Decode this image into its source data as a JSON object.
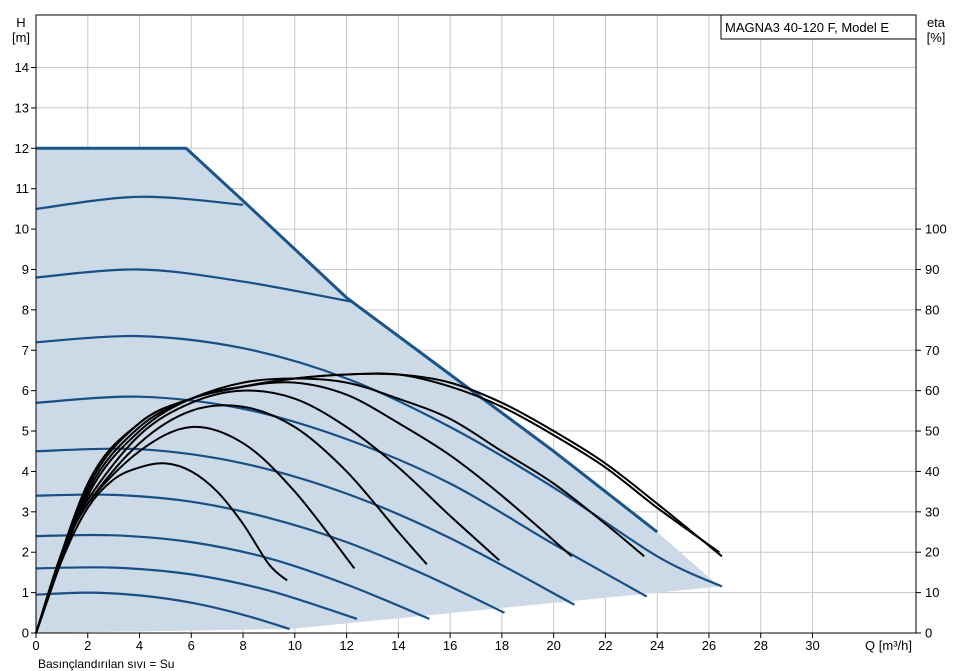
{
  "chart_data": {
    "type": "line",
    "title": "MAGNA3 40-120 F, Model E",
    "xlabel": "Q [m³/h]",
    "ylabel_left": {
      "symbol": "H",
      "unit": "[m]"
    },
    "ylabel_right": {
      "symbol": "eta",
      "unit": "[%]"
    },
    "footnote": "Basınçlandırılan sıvı = Su",
    "xlim": [
      0,
      34
    ],
    "ylim_left": [
      0,
      15.3
    ],
    "ylim_right": [
      0,
      153
    ],
    "xticks": [
      0,
      2,
      4,
      6,
      8,
      10,
      12,
      14,
      16,
      18,
      20,
      22,
      24,
      26,
      28,
      30
    ],
    "yticks_left": [
      0,
      1,
      2,
      3,
      4,
      5,
      6,
      7,
      8,
      9,
      10,
      11,
      12,
      13,
      14
    ],
    "yticks_right": [
      0,
      10,
      20,
      30,
      40,
      50,
      60,
      70,
      80,
      90,
      100
    ],
    "grid": true,
    "colors": {
      "head": "#174f86",
      "efficiency": "#000000",
      "envelope_fill": "#ccd9e6",
      "envelope_border": "#1b5489",
      "grid": "#c8c8c8"
    },
    "operating_envelope": {
      "q": [
        0,
        5.8,
        8,
        12,
        16,
        20,
        24,
        26.4,
        9.8,
        0
      ],
      "h": [
        12,
        12,
        10.7,
        8.3,
        6.4,
        4.5,
        2.5,
        1.15,
        0.1,
        0
      ]
    },
    "head_curves": [
      {
        "q": [
          0,
          2,
          4,
          6,
          8,
          9.8
        ],
        "h": [
          0.95,
          1.0,
          0.93,
          0.75,
          0.45,
          0.1
        ]
      },
      {
        "q": [
          0,
          3,
          6,
          9,
          12.4
        ],
        "h": [
          1.6,
          1.62,
          1.45,
          1.05,
          0.35
        ]
      },
      {
        "q": [
          0,
          3,
          6,
          9,
          12,
          15.2
        ],
        "h": [
          2.4,
          2.42,
          2.25,
          1.85,
          1.2,
          0.35
        ]
      },
      {
        "q": [
          0,
          3,
          6,
          9,
          12,
          15,
          18.1
        ],
        "h": [
          3.4,
          3.42,
          3.25,
          2.85,
          2.25,
          1.45,
          0.5
        ]
      },
      {
        "q": [
          0,
          4,
          8,
          12,
          16,
          20.8
        ],
        "h": [
          4.5,
          4.55,
          4.2,
          3.45,
          2.35,
          0.7
        ]
      },
      {
        "q": [
          0,
          4,
          8,
          12,
          16,
          20,
          23.6
        ],
        "h": [
          5.7,
          5.85,
          5.55,
          4.8,
          3.7,
          2.2,
          0.9
        ]
      },
      {
        "q": [
          0,
          4,
          8,
          12,
          16,
          20,
          24,
          26.5
        ],
        "h": [
          7.2,
          7.35,
          7.05,
          6.3,
          5.1,
          3.6,
          1.9,
          1.15
        ]
      },
      {
        "q": [
          0,
          4,
          8,
          12.2
        ],
        "h": [
          8.8,
          9.0,
          8.7,
          8.2
        ]
      },
      {
        "q": [
          0,
          4,
          8
        ],
        "h": [
          10.5,
          10.8,
          10.6
        ]
      },
      {
        "q": [
          0,
          5.8
        ],
        "h": [
          12,
          12
        ]
      }
    ],
    "efficiency_curves": [
      {
        "q": [
          0,
          1,
          2,
          3,
          4,
          5,
          6,
          7,
          8,
          9,
          9.7
        ],
        "eta": [
          0,
          18,
          31,
          38,
          41,
          42,
          40,
          35,
          27,
          17,
          13
        ]
      },
      {
        "q": [
          0,
          1,
          2,
          4,
          6,
          8,
          10,
          12.3
        ],
        "eta": [
          0,
          19,
          32,
          45,
          51,
          47,
          35,
          16
        ]
      },
      {
        "q": [
          0,
          1,
          2,
          4,
          6,
          8,
          10,
          12,
          14,
          15.1
        ],
        "eta": [
          0,
          19,
          32,
          47,
          55,
          56,
          51,
          40,
          25,
          17
        ]
      },
      {
        "q": [
          0,
          1,
          2,
          4,
          6,
          8,
          10,
          12,
          14,
          16,
          17.9
        ],
        "eta": [
          0,
          20,
          33,
          49,
          57,
          60,
          58,
          51,
          41,
          29,
          18
        ]
      },
      {
        "q": [
          0,
          2,
          4,
          6,
          8,
          10,
          12,
          14,
          16,
          18,
          20.7
        ],
        "eta": [
          0,
          34,
          50,
          58,
          61,
          62,
          59,
          52,
          44,
          34,
          19
        ]
      },
      {
        "q": [
          0,
          2,
          4,
          6,
          8,
          10,
          12,
          14,
          16,
          18,
          20,
          22,
          23.5
        ],
        "eta": [
          0,
          35,
          51,
          58,
          62,
          63,
          62,
          58,
          53,
          45,
          37,
          27,
          19
        ]
      },
      {
        "q": [
          0,
          2,
          4,
          6,
          8,
          10,
          12,
          14,
          16,
          18,
          20,
          22,
          24,
          26.4
        ],
        "eta": [
          0,
          36,
          52,
          58,
          61,
          63,
          64,
          64,
          61,
          56,
          49,
          41,
          31,
          20
        ]
      },
      {
        "q": [
          0,
          2,
          4,
          6,
          8,
          10,
          12,
          14,
          16,
          18,
          20,
          22,
          24,
          26.5
        ],
        "eta": [
          0,
          37,
          52,
          58,
          61,
          63,
          64,
          64,
          62,
          57,
          50,
          42,
          32,
          19
        ]
      }
    ]
  }
}
